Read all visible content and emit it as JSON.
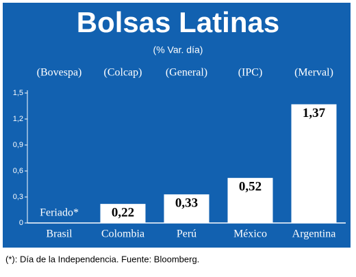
{
  "chart_data": {
    "type": "bar",
    "title": "Bolsas Latinas",
    "subtitle": "(% Var. día)",
    "categories": [
      "Brasil",
      "Colombia",
      "Perú",
      "México",
      "Argentina"
    ],
    "indices": [
      "(Bovespa)",
      "(Colcap)",
      "(General)",
      "(IPC)",
      "(Merval)"
    ],
    "values": [
      null,
      0.22,
      0.33,
      0.52,
      1.37
    ],
    "value_labels": [
      null,
      "0,22",
      "0,33",
      "0,52",
      "1,37"
    ],
    "annotation": "Feriado*",
    "color": "#ffffff",
    "ylim": [
      0,
      1.5
    ],
    "yticks": [
      0,
      {
        "value": 0.3,
        "label": "0,3"
      },
      {
        "value": 0.6,
        "label": "0,6"
      },
      {
        "value": 0.9,
        "label": "0,9"
      },
      {
        "value": 1.2,
        "label": "1,2"
      },
      {
        "value": 1.5,
        "label": "1,5"
      }
    ],
    "footnote": "(*): Día de la Independencia. Fuente: Bloomberg."
  }
}
